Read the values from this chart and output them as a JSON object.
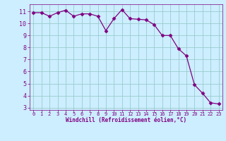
{
  "x": [
    0,
    1,
    2,
    3,
    4,
    5,
    6,
    7,
    8,
    9,
    10,
    11,
    12,
    13,
    14,
    15,
    16,
    17,
    18,
    19,
    20,
    21,
    22,
    23
  ],
  "y": [
    10.9,
    10.9,
    10.6,
    10.9,
    11.1,
    10.6,
    10.8,
    10.8,
    10.6,
    9.4,
    10.4,
    11.15,
    10.4,
    10.35,
    10.3,
    9.9,
    9.0,
    9.0,
    7.9,
    7.3,
    4.9,
    4.2,
    3.4,
    3.3
  ],
  "line_color": "#800080",
  "marker": "D",
  "marker_size": 2.5,
  "bg_color": "#cceeff",
  "grid_color": "#99cccc",
  "xlabel": "Windchill (Refroidissement éolien,°C)",
  "xlabel_color": "#800080",
  "tick_color": "#800080",
  "ylim": [
    2.8,
    11.6
  ],
  "xlim": [
    -0.5,
    23.5
  ],
  "yticks": [
    3,
    4,
    5,
    6,
    7,
    8,
    9,
    10,
    11
  ],
  "xticks": [
    0,
    1,
    2,
    3,
    4,
    5,
    6,
    7,
    8,
    9,
    10,
    11,
    12,
    13,
    14,
    15,
    16,
    17,
    18,
    19,
    20,
    21,
    22,
    23
  ],
  "spine_color": "#800080"
}
